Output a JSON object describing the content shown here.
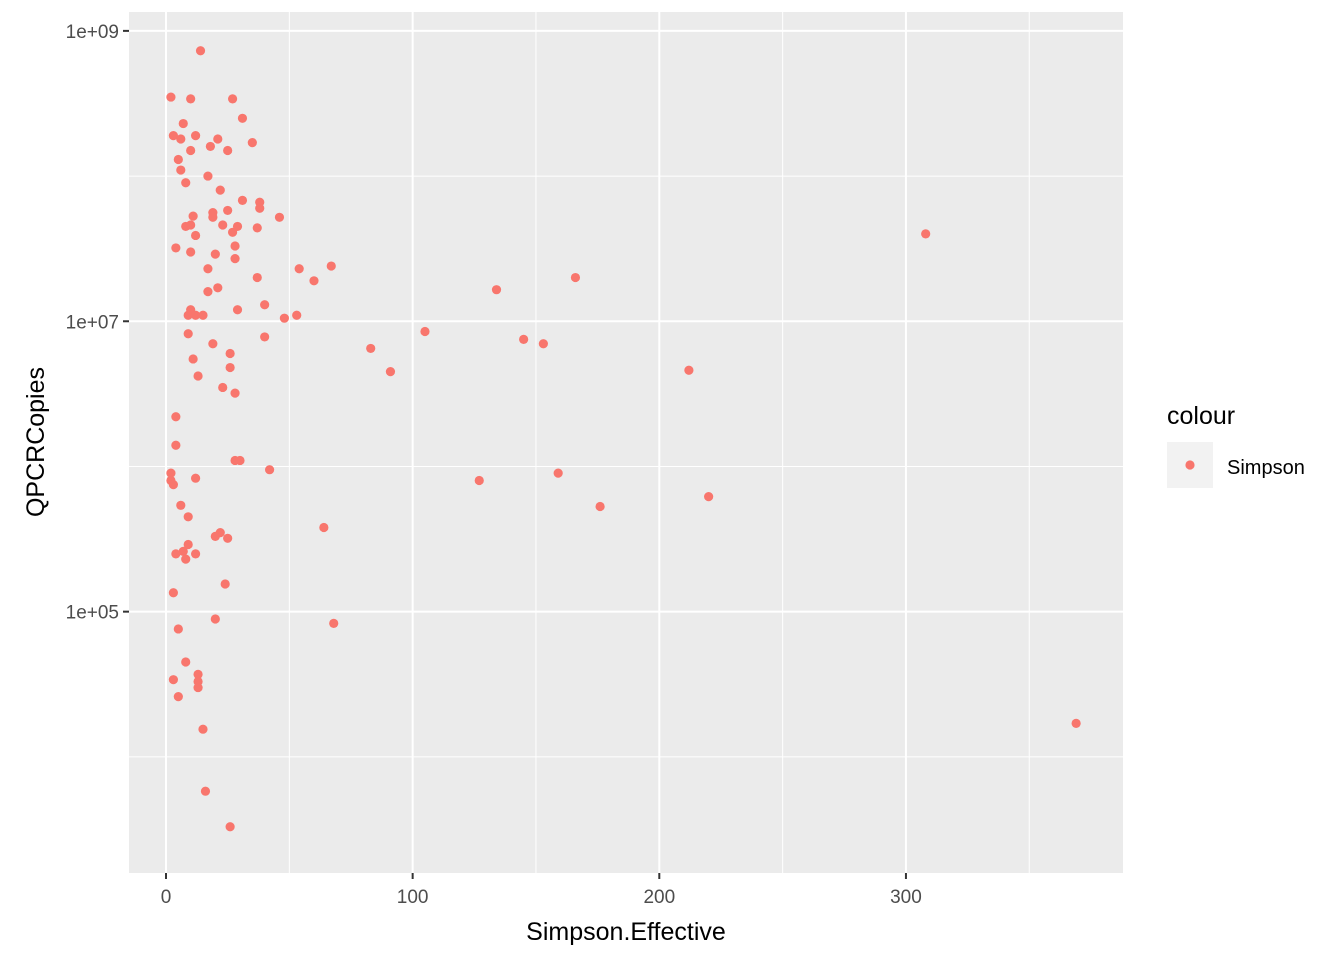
{
  "chart_data": {
    "type": "scatter",
    "xlabel": "Simpson.Effective",
    "ylabel": "QPCRCopies",
    "xlim": [
      -15,
      388
    ],
    "ylim_log10": [
      3.2,
      9.13
    ],
    "y_scale": "log10",
    "x_ticks": [
      0,
      100,
      200,
      300
    ],
    "x_minor_ticks": [
      50,
      150,
      250,
      350
    ],
    "y_ticks": [
      100000,
      10000000,
      1000000000
    ],
    "y_tick_labels": [
      "1e+05",
      "1e+07",
      "1e+09"
    ],
    "y_minor_ticks": [
      10000,
      1000000,
      100000000
    ],
    "grid": true,
    "legend": {
      "title": "colour",
      "position": "right",
      "entries": [
        {
          "label": "Simpson",
          "color": "#F8766D"
        }
      ]
    },
    "point_color": "#F8766D",
    "panel_color": "#EBEBEB",
    "series": [
      {
        "name": "Simpson",
        "points": [
          [
            14,
            730000000.0
          ],
          [
            2,
            350000000.0
          ],
          [
            10,
            340000000.0
          ],
          [
            27,
            340000000.0
          ],
          [
            31,
            250000000.0
          ],
          [
            3,
            190000000.0
          ],
          [
            7,
            230000000.0
          ],
          [
            12,
            190000000.0
          ],
          [
            6,
            180000000.0
          ],
          [
            18,
            160000000.0
          ],
          [
            21,
            180000000.0
          ],
          [
            25,
            150000000.0
          ],
          [
            35,
            170000000.0
          ],
          [
            10,
            150000000.0
          ],
          [
            5,
            130000000.0
          ],
          [
            6,
            110000000.0
          ],
          [
            17,
            100000000.0
          ],
          [
            8,
            90000000.0
          ],
          [
            22,
            80000000.0
          ],
          [
            31,
            68000000.0
          ],
          [
            38,
            66000000.0
          ],
          [
            38,
            60000000.0
          ],
          [
            25,
            58000000.0
          ],
          [
            19,
            56000000.0
          ],
          [
            19,
            52000000.0
          ],
          [
            11,
            53000000.0
          ],
          [
            46,
            52000000.0
          ],
          [
            29,
            45000000.0
          ],
          [
            23,
            46000000.0
          ],
          [
            10,
            46000000.0
          ],
          [
            8,
            45000000.0
          ],
          [
            37,
            44000000.0
          ],
          [
            27,
            41000000.0
          ],
          [
            12,
            39000000.0
          ],
          [
            4,
            32000000.0
          ],
          [
            28,
            33000000.0
          ],
          [
            10,
            30000000.0
          ],
          [
            20,
            29000000.0
          ],
          [
            28,
            27000000.0
          ],
          [
            54,
            23000000.0
          ],
          [
            67,
            24000000.0
          ],
          [
            17,
            23000000.0
          ],
          [
            37,
            20000000.0
          ],
          [
            60,
            19000000.0
          ],
          [
            21,
            17000000.0
          ],
          [
            17,
            16000000.0
          ],
          [
            40,
            13000000.0
          ],
          [
            10,
            12000000.0
          ],
          [
            29,
            12000000.0
          ],
          [
            9,
            11000000.0
          ],
          [
            12,
            11000000.0
          ],
          [
            15,
            11000000.0
          ],
          [
            48,
            10500000.0
          ],
          [
            53,
            11000000.0
          ],
          [
            9,
            8200000.0
          ],
          [
            40,
            7800000.0
          ],
          [
            19,
            7000000.0
          ],
          [
            26,
            6000000.0
          ],
          [
            11,
            5500000.0
          ],
          [
            26,
            4800000.0
          ],
          [
            13,
            4200000.0
          ],
          [
            23,
            3500000.0
          ],
          [
            28,
            3200000.0
          ],
          [
            4,
            2200000.0
          ],
          [
            4,
            1400000.0
          ],
          [
            28,
            1100000.0
          ],
          [
            30,
            1100000.0
          ],
          [
            42,
            950000.0
          ],
          [
            2,
            900000.0
          ],
          [
            12,
            830000.0
          ],
          [
            2,
            800000.0
          ],
          [
            3,
            750000.0
          ],
          [
            6,
            540000.0
          ],
          [
            9,
            450000.0
          ],
          [
            64,
            380000.0
          ],
          [
            22,
            350000.0
          ],
          [
            20,
            330000.0
          ],
          [
            25,
            320000.0
          ],
          [
            9,
            290000.0
          ],
          [
            7,
            260000.0
          ],
          [
            4,
            250000.0
          ],
          [
            12,
            250000.0
          ],
          [
            8,
            230000.0
          ],
          [
            24,
            155000.0
          ],
          [
            3,
            135000.0
          ],
          [
            20,
            89000.0
          ],
          [
            68,
            83000.0
          ],
          [
            5,
            76000.0
          ],
          [
            8,
            45000.0
          ],
          [
            13,
            37000.0
          ],
          [
            3,
            34000.0
          ],
          [
            13,
            33000.0
          ],
          [
            13,
            30000.0
          ],
          [
            5,
            26000.0
          ],
          [
            15,
            15500.0
          ],
          [
            16,
            5800.0
          ],
          [
            26,
            3300.0
          ],
          [
            83,
            6500000.0
          ],
          [
            91,
            4500000.0
          ],
          [
            105,
            8500000.0
          ],
          [
            134,
            16500000.0
          ],
          [
            127,
            800000.0
          ],
          [
            145,
            7500000.0
          ],
          [
            153,
            7000000.0
          ],
          [
            159,
            900000.0
          ],
          [
            166,
            20000000.0
          ],
          [
            176,
            530000.0
          ],
          [
            212,
            4600000.0
          ],
          [
            220,
            620000.0
          ],
          [
            308,
            40000000.0
          ],
          [
            369,
            17000.0
          ]
        ]
      }
    ]
  }
}
